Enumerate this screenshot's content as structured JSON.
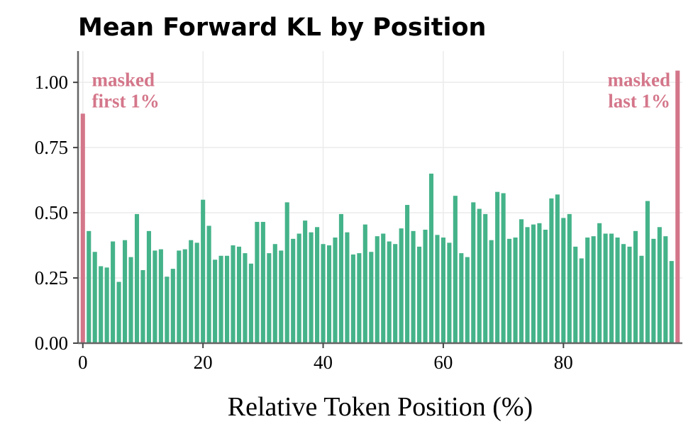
{
  "chart_data": {
    "type": "bar",
    "title": "Mean Forward KL by Position",
    "xlabel": "Relative Token Position (%)",
    "ylabel": "",
    "xlim": [
      -0.8,
      99.8
    ],
    "ylim": [
      0,
      1.12
    ],
    "xticks": [
      0,
      20,
      40,
      60,
      80
    ],
    "xtick_labels": [
      "0",
      "20",
      "40",
      "60",
      "80"
    ],
    "yticks": [
      0,
      0.25,
      0.5,
      0.75,
      1.0
    ],
    "ytick_labels": [
      "0.00",
      "0.25",
      "0.50",
      "0.75",
      "1.00"
    ],
    "grid": true,
    "bar_color": "#45b38a",
    "masked_color": "#d4768a",
    "x": [
      0,
      1,
      2,
      3,
      4,
      5,
      6,
      7,
      8,
      9,
      10,
      11,
      12,
      13,
      14,
      15,
      16,
      17,
      18,
      19,
      20,
      21,
      22,
      23,
      24,
      25,
      26,
      27,
      28,
      29,
      30,
      31,
      32,
      33,
      34,
      35,
      36,
      37,
      38,
      39,
      40,
      41,
      42,
      43,
      44,
      45,
      46,
      47,
      48,
      49,
      50,
      51,
      52,
      53,
      54,
      55,
      56,
      57,
      58,
      59,
      60,
      61,
      62,
      63,
      64,
      65,
      66,
      67,
      68,
      69,
      70,
      71,
      72,
      73,
      74,
      75,
      76,
      77,
      78,
      79,
      80,
      81,
      82,
      83,
      84,
      85,
      86,
      87,
      88,
      89,
      90,
      91,
      92,
      93,
      94,
      95,
      96,
      97,
      98,
      99
    ],
    "values": [
      0.88,
      0.43,
      0.35,
      0.295,
      0.29,
      0.39,
      0.235,
      0.395,
      0.33,
      0.495,
      0.28,
      0.43,
      0.355,
      0.36,
      0.255,
      0.285,
      0.355,
      0.36,
      0.395,
      0.385,
      0.55,
      0.45,
      0.32,
      0.335,
      0.335,
      0.375,
      0.37,
      0.345,
      0.305,
      0.465,
      0.465,
      0.345,
      0.38,
      0.355,
      0.54,
      0.4,
      0.42,
      0.47,
      0.425,
      0.445,
      0.38,
      0.375,
      0.405,
      0.495,
      0.425,
      0.34,
      0.345,
      0.455,
      0.35,
      0.41,
      0.42,
      0.39,
      0.38,
      0.44,
      0.53,
      0.43,
      0.37,
      0.435,
      0.65,
      0.415,
      0.405,
      0.385,
      0.565,
      0.345,
      0.33,
      0.54,
      0.515,
      0.495,
      0.395,
      0.58,
      0.575,
      0.4,
      0.405,
      0.475,
      0.445,
      0.455,
      0.46,
      0.435,
      0.555,
      0.57,
      0.48,
      0.495,
      0.37,
      0.325,
      0.405,
      0.41,
      0.46,
      0.42,
      0.42,
      0.405,
      0.38,
      0.37,
      0.43,
      0.335,
      0.545,
      0.4,
      0.445,
      0.41,
      0.315,
      1.045
    ],
    "masked_indices": [
      0,
      99
    ],
    "annotations": [
      {
        "lines": [
          "masked",
          "first 1%"
        ],
        "x": 1.5,
        "y": 0.985,
        "align": "left"
      },
      {
        "lines": [
          "masked",
          "last 1%"
        ],
        "x": 97.8,
        "y": 0.985,
        "align": "right"
      }
    ]
  }
}
